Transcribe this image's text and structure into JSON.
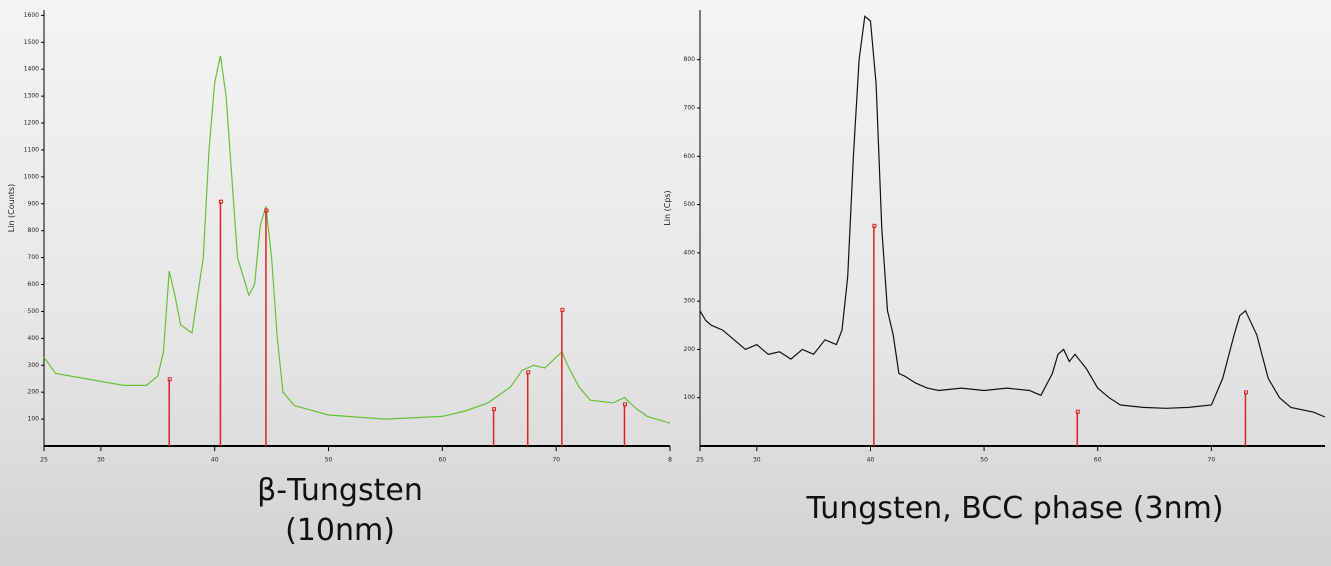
{
  "chart_data": [
    {
      "type": "line",
      "ylabel": "Lin (Counts)",
      "caption": [
        "β-Tungsten",
        "(10nm)"
      ],
      "xlim": [
        25,
        80
      ],
      "ylim": [
        0,
        1620
      ],
      "xticks": [
        25,
        30,
        40,
        50,
        60,
        70,
        {
          "value": 80,
          "label": "8"
        }
      ],
      "yticks": [
        100,
        200,
        300,
        400,
        500,
        600,
        700,
        800,
        900,
        1000,
        1100,
        1200,
        1300,
        1400,
        1500,
        1600
      ],
      "x": [
        25,
        26,
        28,
        30,
        32,
        34,
        35,
        35.5,
        36,
        36.5,
        37,
        38,
        39,
        39.5,
        40,
        40.5,
        41,
        41.5,
        42,
        43,
        43.5,
        44,
        44.5,
        45,
        45.5,
        46,
        47,
        50,
        55,
        60,
        62,
        64,
        66,
        67,
        68,
        69,
        70,
        70.5,
        71,
        72,
        73,
        75,
        76,
        77,
        78,
        80
      ],
      "series": [
        {
          "color": "#6abf3a",
          "values": [
            330,
            270,
            255,
            240,
            225,
            225,
            260,
            350,
            650,
            560,
            450,
            420,
            700,
            1100,
            1350,
            1450,
            1300,
            1000,
            700,
            560,
            600,
            820,
            890,
            700,
            400,
            200,
            150,
            115,
            100,
            110,
            130,
            160,
            220,
            280,
            300,
            290,
            330,
            350,
            300,
            220,
            170,
            160,
            180,
            140,
            110,
            85
          ]
        }
      ],
      "sticks": {
        "color": "#e02020",
        "x": [
          36,
          40.5,
          44.5,
          64.5,
          67.5,
          70.5,
          76
        ],
        "values": [
          246,
          906,
          873,
          135,
          272,
          504,
          153
        ]
      }
    },
    {
      "type": "line",
      "ylabel": "Lin (Cps)",
      "caption": [
        "Tungsten, BCC phase (3nm)"
      ],
      "xlim": [
        25,
        80
      ],
      "ylim": [
        0,
        903
      ],
      "xticks": [
        25,
        30,
        40,
        50,
        60,
        70
      ],
      "yticks": [
        100,
        200,
        300,
        400,
        500,
        600,
        700,
        800
      ],
      "x": [
        25,
        25.5,
        26,
        27,
        28,
        29,
        30,
        31,
        32,
        33,
        34,
        35,
        36,
        37,
        37.5,
        38,
        38.5,
        39,
        39.5,
        40,
        40.5,
        41,
        41.5,
        42,
        42.5,
        43,
        44,
        45,
        46,
        48,
        50,
        52,
        54,
        55,
        56,
        56.5,
        57,
        57.5,
        58,
        59,
        60,
        61,
        62,
        64,
        66,
        68,
        70,
        71,
        72,
        72.5,
        73,
        74,
        75,
        76,
        77,
        78,
        79,
        80
      ],
      "series": [
        {
          "color": "#111111",
          "values": [
            280,
            260,
            250,
            240,
            220,
            200,
            210,
            190,
            195,
            180,
            200,
            190,
            220,
            210,
            240,
            350,
            600,
            800,
            890,
            880,
            750,
            450,
            280,
            230,
            150,
            145,
            130,
            120,
            115,
            120,
            115,
            120,
            115,
            105,
            150,
            190,
            200,
            175,
            190,
            160,
            120,
            100,
            85,
            80,
            78,
            80,
            85,
            140,
            230,
            270,
            280,
            230,
            140,
            100,
            80,
            75,
            70,
            60
          ]
        }
      ],
      "sticks": {
        "color": "#e02020",
        "x": [
          40.3,
          58.2,
          73
        ],
        "values": [
          455,
          70,
          110
        ]
      }
    }
  ]
}
